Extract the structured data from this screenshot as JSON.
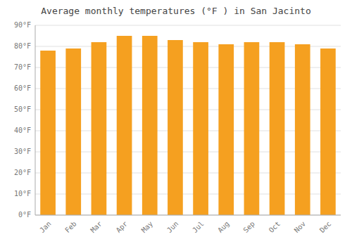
{
  "chart_data": {
    "type": "bar",
    "title": "Average monthly temperatures (°F ) in San Jacinto",
    "categories": [
      "Jan",
      "Feb",
      "Mar",
      "Apr",
      "May",
      "Jun",
      "Jul",
      "Aug",
      "Sep",
      "Oct",
      "Nov",
      "Dec"
    ],
    "values": [
      78,
      79,
      82,
      85,
      85,
      83,
      82,
      81,
      82,
      82,
      81,
      79
    ],
    "color": "#F5A020",
    "ylim": [
      0,
      90
    ],
    "yticks": [
      {
        "value": 0,
        "label": "0°F"
      },
      {
        "value": 10,
        "label": "10°F"
      },
      {
        "value": 20,
        "label": "20°F"
      },
      {
        "value": 30,
        "label": "30°F"
      },
      {
        "value": 40,
        "label": "40°F"
      },
      {
        "value": 50,
        "label": "50°F"
      },
      {
        "value": 60,
        "label": "60°F"
      },
      {
        "value": 70,
        "label": "70°F"
      },
      {
        "value": 80,
        "label": "80°F"
      },
      {
        "value": 90,
        "label": "90°F"
      }
    ],
    "grid": true
  }
}
